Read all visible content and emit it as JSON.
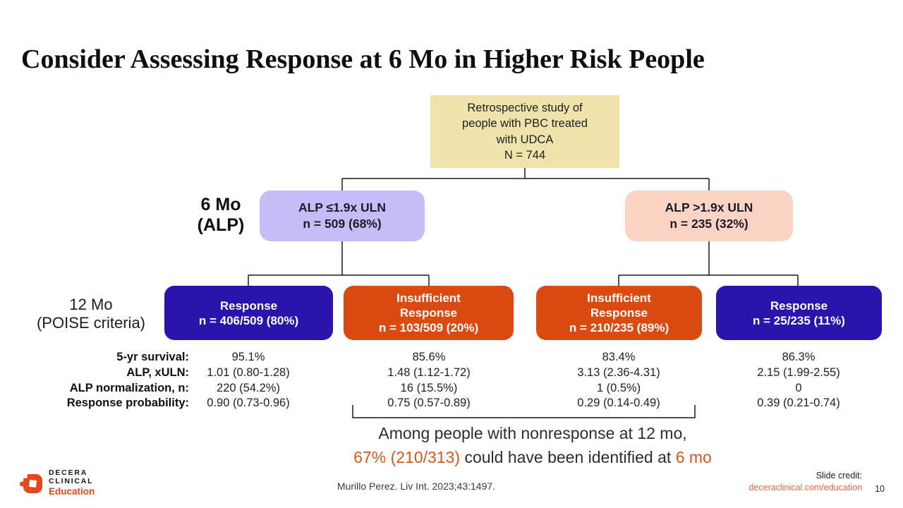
{
  "slide": {
    "title": "Consider Assessing Response at 6 Mo in Higher Risk People",
    "page_number": "10"
  },
  "colors": {
    "blue": "#2A14AE",
    "orange": "#DB4A10",
    "purple": "#C8BCF6",
    "pink": "#FAD3C5",
    "tan": "#EFE3AC",
    "highlight": "#D4581E",
    "link": "#E0673F",
    "logo-orange": "#E3471C",
    "ink": "#1A1A1A"
  },
  "flowchart": {
    "root": {
      "lines": [
        "Retrospective study of",
        "people with PBC treated",
        "with UDCA",
        "N = 744"
      ]
    },
    "level1_label": {
      "lines": [
        "6 Mo",
        "(ALP)"
      ]
    },
    "level1": [
      {
        "title": "ALP ≤1.9x ULN",
        "n": "n = 509 (68%)"
      },
      {
        "title": "ALP >1.9x ULN",
        "n": "n = 235 (32%)"
      }
    ],
    "level2_label": {
      "lines": [
        "12 Mo",
        "(POISE criteria)"
      ]
    },
    "level2": [
      {
        "title": "Response",
        "n": "n = 406/509 (80%)"
      },
      {
        "title": "Insufficient Response",
        "n": "n = 103/509 (20%)"
      },
      {
        "title": "Insufficient Response",
        "n": "n = 210/235 (89%)"
      },
      {
        "title": "Response",
        "n": "n = 25/235 (11%)"
      }
    ]
  },
  "stats": {
    "row_labels": [
      "5-yr survival:",
      "ALP, xULN:",
      "ALP normalization, n:",
      "Response probability:"
    ],
    "columns": [
      [
        "95.1%",
        "1.01 (0.80-1.28)",
        "220 (54.2%)",
        "0.90 (0.73-0.96)"
      ],
      [
        "85.6%",
        "1.48 (1.12-1.72)",
        "16 (15.5%)",
        "0.75 (0.57-0.89)"
      ],
      [
        "83.4%",
        "3.13 (2.36-4.31)",
        "1 (0.5%)",
        "0.29 (0.14-0.49)"
      ],
      [
        "86.3%",
        "2.15 (1.99-2.55)",
        "0",
        "0.39 (0.21-0.74)"
      ]
    ]
  },
  "conclusion": {
    "line1": "Among people with nonresponse at 12 mo,",
    "highlight1": "67% (210/313)",
    "mid": " could have been identified at ",
    "highlight2": "6 mo"
  },
  "footer": {
    "citation": "Murillo Perez. Liv Int. 2023;43:1497.",
    "credit_label": "Slide credit:",
    "credit_link": "deceraclinical.com/education",
    "logo_line1": "DECERA",
    "logo_line2": "CLINICAL",
    "logo_tagline": "Education"
  }
}
